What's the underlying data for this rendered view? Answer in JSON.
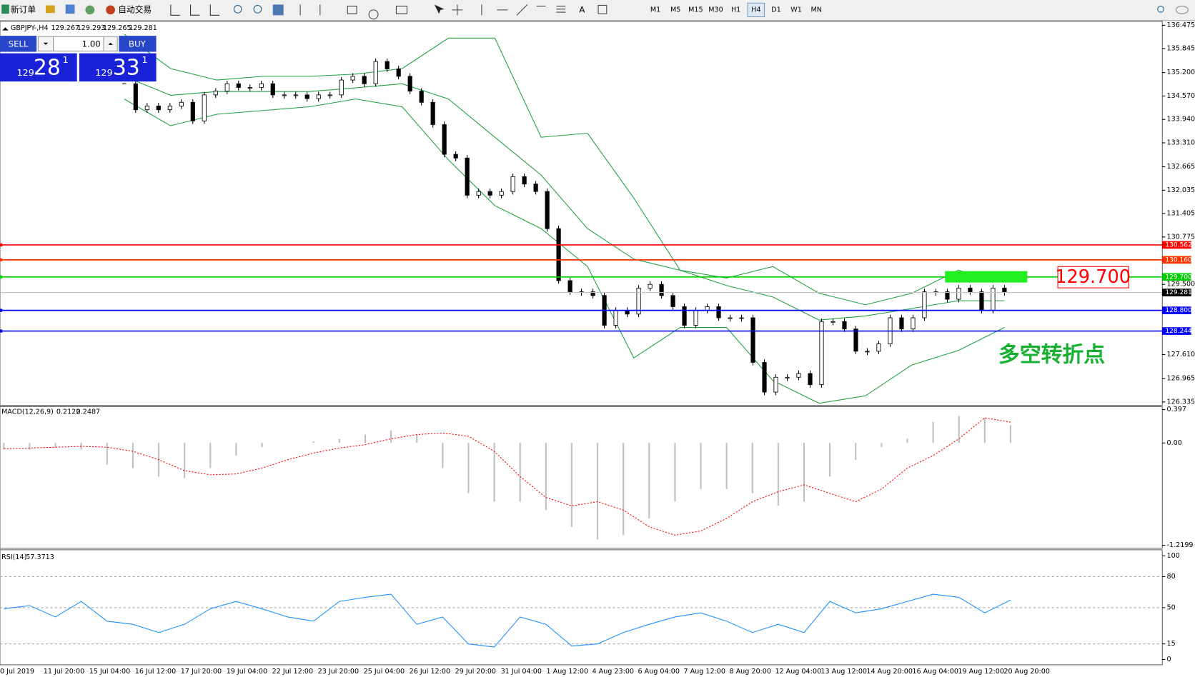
{
  "toolbar": {
    "new_order": "新订单",
    "auto_trading": "自动交易",
    "timeframes": [
      "M1",
      "M5",
      "M15",
      "M30",
      "H1",
      "H4",
      "D1",
      "W1",
      "MN"
    ]
  },
  "trade_panel": {
    "sell": "SELL",
    "buy": "BUY",
    "lot": "1.00",
    "bid": [
      "129",
      "28",
      "1"
    ],
    "ask": [
      "129",
      "33",
      "1"
    ]
  },
  "chart_data": {
    "type": "candlestick",
    "symbol": "GBPJPY-,H4",
    "ohlc": [
      129.267,
      129.293,
      129.265,
      129.281
    ],
    "closes": [
      134.9,
      134.2,
      134.3,
      134.2,
      134.3,
      134.4,
      133.9,
      134.6,
      134.7,
      134.9,
      134.8,
      134.8,
      134.9,
      134.6,
      134.6,
      134.6,
      134.5,
      134.6,
      134.6,
      135.0,
      135.1,
      134.9,
      135.5,
      135.3,
      135.1,
      134.7,
      134.4,
      133.8,
      133.0,
      132.9,
      131.9,
      132.0,
      131.9,
      132.0,
      132.4,
      132.2,
      132.0,
      131.0,
      129.6,
      129.3,
      129.3,
      129.2,
      128.4,
      128.8,
      128.7,
      129.4,
      129.5,
      129.2,
      128.9,
      128.4,
      128.8,
      128.9,
      128.6,
      128.6,
      128.6,
      127.4,
      126.6,
      127.0,
      127.0,
      127.1,
      126.8,
      128.5,
      128.5,
      128.3,
      127.7,
      127.7,
      127.9,
      128.6,
      128.3,
      128.6,
      129.3,
      129.3,
      129.1,
      129.4,
      129.3,
      128.8,
      129.4,
      129.281
    ],
    "bands": [
      {
        "color": "#20a040",
        "values": [
          136.23,
          135.31,
          135.0,
          135.1,
          135.1,
          135.16,
          135.31,
          136.13,
          136.13,
          133.46,
          133.57,
          131.82,
          129.88,
          129.67,
          129.98,
          129.26,
          128.95,
          129.26,
          129.88,
          129.57
        ]
      },
      {
        "color": "#20a040",
        "values": [
          135.1,
          134.59,
          134.69,
          134.69,
          134.69,
          134.79,
          134.9,
          134.49,
          133.46,
          132.44,
          131.0,
          130.18,
          129.88,
          129.47,
          129.16,
          128.54,
          128.65,
          128.85,
          129.06,
          129.06
        ]
      },
      {
        "color": "#20a040",
        "values": [
          134.49,
          133.77,
          134.08,
          134.18,
          134.28,
          134.49,
          134.28,
          132.85,
          131.62,
          131.0,
          129.98,
          127.52,
          128.34,
          128.34,
          126.91,
          126.3,
          126.5,
          127.33,
          127.72,
          128.34
        ]
      }
    ],
    "ylim": [
      126.27,
      136.58
    ],
    "yticks": [
      {
        "value": 136.475,
        "label": "136.475"
      },
      {
        "value": 135.845,
        "label": "135.845"
      },
      {
        "value": 135.2,
        "label": "135.200"
      },
      {
        "value": 134.57,
        "label": "134.570"
      },
      {
        "value": 133.94,
        "label": "133.940"
      },
      {
        "value": 133.31,
        "label": "133.310"
      },
      {
        "value": 132.665,
        "label": "132.665"
      },
      {
        "value": 132.035,
        "label": "132.035"
      },
      {
        "value": 131.405,
        "label": "131.405"
      },
      {
        "value": 130.775,
        "label": "130.775"
      },
      {
        "value": 129.5,
        "label": "129.500"
      },
      {
        "value": 127.61,
        "label": "127.610"
      },
      {
        "value": 126.965,
        "label": "126.965"
      },
      {
        "value": 126.335,
        "label": "126.335"
      }
    ],
    "levels": [
      {
        "value": 130.562,
        "color": "#ff0000"
      },
      {
        "value": 130.16,
        "label": "130.160",
        "color": "#ff3300"
      },
      {
        "value": 129.7,
        "label": "129.700",
        "color": "#00cc00"
      },
      {
        "value": 128.8,
        "label": "128.800",
        "color": "#0000ff"
      },
      {
        "value": 128.244,
        "color": "#0000ff"
      },
      {
        "value": 129.281,
        "color": "#c0c0c0",
        "current": true
      }
    ],
    "annotation": {
      "value": 129.7,
      "label": "129.700"
    },
    "note": "多空转折点",
    "x": [
      "0 Jul 2019",
      "11 Jul 20:00",
      "15 Jul 04:00",
      "16 Jul 12:00",
      "17 Jul 20:00",
      "19 Jul 04:00",
      "22 Jul 12:00",
      "23 Jul 20:00",
      "25 Jul 04:00",
      "26 Jul 12:00",
      "29 Jul 20:00",
      "31 Jul 04:00",
      "1 Aug 12:00",
      "4 Aug 23:00",
      "6 Aug 04:00",
      "7 Aug 12:00",
      "8 Aug 20:00",
      "12 Aug 04:00",
      "13 Aug 12:00",
      "14 Aug 20:00",
      "16 Aug 04:00",
      "19 Aug 12:00",
      "20 Aug 20:00"
    ],
    "macd": {
      "name": "MACD(12,26,9)",
      "ylim": [
        -1.2199,
        0.397
      ],
      "yticks": [
        0.397,
        {
          "value": 0,
          "label": "0.00"
        },
        -1.2199
      ],
      "series": [
        {
          "color": "#c0c0c0",
          "values": [
            -0.08,
            -0.08,
            -0.05,
            -0.08,
            -0.26,
            -0.3,
            -0.4,
            -0.42,
            -0.3,
            -0.15,
            -0.05,
            0,
            0.02,
            0.05,
            0.1,
            0.15,
            0.1,
            -0.3,
            -0.6,
            -0.7,
            -0.7,
            -0.8,
            -1.0,
            -1.15,
            -1.1,
            -0.9,
            -0.7,
            -0.55,
            -0.55,
            -0.6,
            -0.75,
            -0.7,
            -0.4,
            -0.2,
            -0.05,
            0.05,
            0.25,
            0.32,
            0.3,
            0.2122
          ]
        },
        {
          "color": "#ff0000",
          "values": [
            -0.07,
            -0.06,
            -0.05,
            -0.04,
            -0.05,
            -0.1,
            -0.2,
            -0.33,
            -0.38,
            -0.37,
            -0.3,
            -0.2,
            -0.12,
            -0.06,
            -0.02,
            0.05,
            0.1,
            0.12,
            0.08,
            -0.1,
            -0.4,
            -0.65,
            -0.75,
            -0.7,
            -0.8,
            -1.0,
            -1.1,
            -1.05,
            -0.9,
            -0.7,
            -0.58,
            -0.5,
            -0.6,
            -0.7,
            -0.55,
            -0.3,
            -0.15,
            0.05,
            0.3,
            0.2487
          ]
        }
      ]
    },
    "rsi": {
      "name": "RSI(14)",
      "ylim": [
        0,
        100
      ],
      "yticks": [
        100,
        80,
        50,
        15,
        0
      ],
      "color": "#1e90ff",
      "values": [
        49,
        52,
        41,
        56,
        37,
        34,
        26,
        34,
        49,
        56,
        49,
        41,
        37,
        56,
        60,
        63,
        34,
        41,
        15,
        12,
        41,
        34,
        13,
        15,
        26,
        34,
        41,
        45,
        37,
        26,
        34,
        26,
        56,
        45,
        49,
        56,
        63,
        60,
        45,
        57.3713
      ]
    }
  }
}
